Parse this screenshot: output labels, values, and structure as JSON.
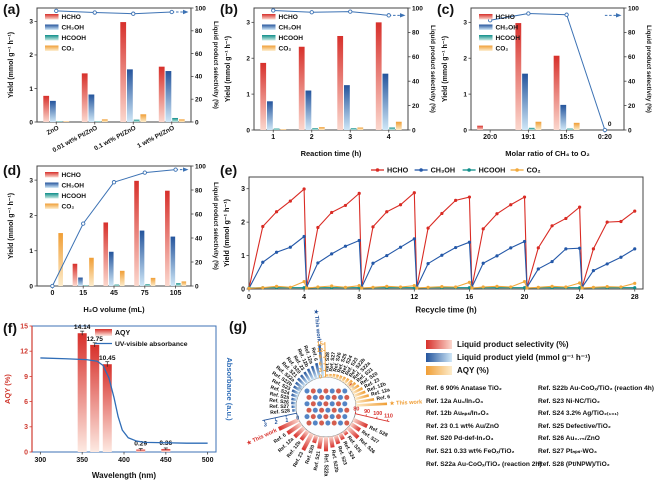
{
  "figure": {
    "panels": {
      "a": {
        "tag": "(a)"
      },
      "b": {
        "tag": "(b)"
      },
      "c": {
        "tag": "(c)"
      },
      "d": {
        "tag": "(d)"
      },
      "e": {
        "tag": "(e)"
      },
      "f": {
        "tag": "(f)"
      },
      "g": {
        "tag": "(g)"
      }
    }
  },
  "colors": {
    "red": "#e2453c",
    "red_dark": "#d7302b",
    "red_light": "#fbd7cd",
    "blue": "#2a65ae",
    "blue_dark": "#24549c",
    "blue_light": "#cfe7f7",
    "teal": "#0f8e8a",
    "teal_light": "#c9e9e2",
    "orange": "#f4ac4c",
    "orange_dark": "#f09e35",
    "orange_light": "#fdeccb",
    "line_blue": "#3c72b4",
    "axis": "#444444",
    "text": "#111111"
  },
  "chart_data": [
    {
      "id": "a",
      "type": "bar+line",
      "categories": [
        "ZnO",
        "0.01 wt% Pt/ZnO",
        "0.1 wt% Pt/ZnO",
        "1 wt% Pt/ZnO"
      ],
      "rotate_xlabels": true,
      "xlabel": "",
      "ylabel": "Yield (mmol g⁻¹ h⁻¹)",
      "y2label": "Liquid product selectivity (%)",
      "ylim": [
        0,
        3.4
      ],
      "yticks": [
        0,
        1,
        2,
        3
      ],
      "y2lim": [
        0,
        100
      ],
      "y2ticks": [
        0,
        20,
        40,
        60,
        80,
        100
      ],
      "series": [
        {
          "name": "HCHO",
          "color_key": "red",
          "values": [
            0.78,
            1.45,
            2.98,
            1.65
          ]
        },
        {
          "name": "CH₃OH",
          "color_key": "blue",
          "values": [
            0.63,
            0.82,
            1.57,
            1.52
          ]
        },
        {
          "name": "HCOOH",
          "color_key": "teal",
          "values": [
            0.02,
            0.02,
            0.07,
            0.12
          ]
        },
        {
          "name": "CO₂",
          "color_key": "orange",
          "values": [
            0.02,
            0.08,
            0.23,
            0.08
          ]
        }
      ],
      "line": {
        "name": "Liquid product selectivity",
        "values": [
          97.5,
          96,
          95,
          96.5
        ],
        "arrow_y": 96.5
      }
    },
    {
      "id": "b",
      "type": "bar+line",
      "categories": [
        "1",
        "2",
        "3",
        "4"
      ],
      "rotate_xlabels": false,
      "xlabel": "Reaction time (h)",
      "ylabel": "Yield (mmol g⁻¹ h⁻¹)",
      "y2label": "Liquid product selectivity (%)",
      "ylim": [
        0,
        3.4
      ],
      "yticks": [
        0,
        1,
        2,
        3
      ],
      "y2lim": [
        0,
        100
      ],
      "y2ticks": [
        0,
        20,
        40,
        60,
        80,
        100
      ],
      "series": [
        {
          "name": "HCHO",
          "color_key": "red",
          "values": [
            1.87,
            2.32,
            2.62,
            3.0
          ]
        },
        {
          "name": "CH₃OH",
          "color_key": "blue",
          "values": [
            0.8,
            1.1,
            1.25,
            1.57
          ]
        },
        {
          "name": "HCOOH",
          "color_key": "teal",
          "values": [
            0.04,
            0.05,
            0.05,
            0.07
          ]
        },
        {
          "name": "CO₂",
          "color_key": "orange",
          "values": [
            0.02,
            0.08,
            0.07,
            0.23
          ]
        }
      ],
      "line": {
        "name": "Liquid product selectivity",
        "values": [
          98,
          96.5,
          97,
          94
        ],
        "arrow_y": 94
      }
    },
    {
      "id": "c",
      "type": "bar+line",
      "categories": [
        "20:0",
        "19:1",
        "15:5",
        "0:20"
      ],
      "rotate_xlabels": false,
      "xlabel": "Molar ratio of CH₄ to O₂",
      "ylabel": "Yield (mmol g⁻¹ h⁻¹)",
      "y2label": "Liquid product selectivity (%)",
      "ylim": [
        0,
        3.4
      ],
      "yticks": [
        0,
        1,
        2,
        3
      ],
      "y2lim": [
        0,
        100
      ],
      "y2ticks": [
        0,
        20,
        40,
        60,
        80,
        100
      ],
      "series": [
        {
          "name": "HCHO",
          "color_key": "red",
          "values": [
            0.12,
            2.98,
            2.07,
            0
          ]
        },
        {
          "name": "CH₃OH",
          "color_key": "blue",
          "values": [
            0,
            1.57,
            0.7,
            0
          ]
        },
        {
          "name": "HCOOH",
          "color_key": "teal",
          "values": [
            0,
            0.06,
            0.04,
            0
          ]
        },
        {
          "name": "CO₂",
          "color_key": "orange",
          "values": [
            0,
            0.23,
            0.2,
            0
          ]
        }
      ],
      "line": {
        "name": "Liquid product selectivity",
        "values": [
          90,
          95.5,
          94.5,
          0
        ],
        "zero_label": "0",
        "zero_label_index": 3,
        "arrow_y": 94
      }
    },
    {
      "id": "d",
      "type": "bar+line",
      "categories": [
        "0",
        "15",
        "45",
        "75",
        "105"
      ],
      "rotate_xlabels": false,
      "xlabel": "H₂O volume (mL)",
      "ylabel": "Yield (mmol g⁻¹ h⁻¹)",
      "y2label": "Liquid product selectivity (%)",
      "ylim": [
        0,
        3.4
      ],
      "yticks": [
        0,
        1,
        2,
        3
      ],
      "y2lim": [
        0,
        100
      ],
      "y2ticks": [
        0,
        20,
        40,
        60,
        80,
        100
      ],
      "series": [
        {
          "name": "HCHO",
          "color_key": "red",
          "values": [
            0,
            0.63,
            1.8,
            2.98,
            2.7
          ]
        },
        {
          "name": "CH₃OH",
          "color_key": "blue",
          "values": [
            0,
            0.24,
            0.97,
            1.57,
            1.4
          ]
        },
        {
          "name": "HCOOH",
          "color_key": "teal",
          "values": [
            0,
            0.02,
            0.04,
            0.05,
            0.08
          ]
        },
        {
          "name": "CO₂",
          "color_key": "orange",
          "values": [
            1.5,
            0.8,
            0.43,
            0.23,
            0.13
          ]
        }
      ],
      "line": {
        "name": "Liquid product selectivity",
        "values": [
          0,
          52,
          86.5,
          94.5,
          97
        ],
        "arrow_y": 97
      }
    },
    {
      "id": "e",
      "type": "line",
      "xlabel": "Recycle time (h)",
      "ylabel": "Yield (mmol g⁻¹ h⁻¹)",
      "xlim": [
        0,
        28.6
      ],
      "xticks": [
        0,
        4,
        8,
        12,
        16,
        20,
        24,
        28
      ],
      "ylim": [
        0,
        3.35
      ],
      "yticks": [
        0,
        1,
        2,
        3
      ],
      "cycle_hours": 4,
      "series": [
        {
          "name": "HCHO",
          "color": "#d92b24",
          "cycles": [
            [
              0.02,
              1.87,
              2.31,
              2.63,
              2.99
            ],
            [
              0.05,
              1.84,
              2.29,
              2.5,
              2.86
            ],
            [
              0.05,
              1.86,
              2.31,
              2.52,
              2.88
            ],
            [
              0.05,
              1.82,
              2.26,
              2.65,
              2.75
            ],
            [
              0.05,
              1.8,
              2.25,
              2.52,
              2.75
            ],
            [
              0.05,
              1.23,
              1.89,
              2.11,
              2.45
            ],
            [
              0.05,
              1.2,
              2.0,
              2.02,
              2.33
            ]
          ]
        },
        {
          "name": "CH₃OH",
          "color": "#2458a8",
          "cycles": [
            [
              0.02,
              0.8,
              1.1,
              1.25,
              1.57
            ],
            [
              0.05,
              0.78,
              1.05,
              1.28,
              1.45
            ],
            [
              0.05,
              0.77,
              1.0,
              1.25,
              1.5
            ],
            [
              0.05,
              0.76,
              1.01,
              1.24,
              1.4
            ],
            [
              0.05,
              0.77,
              0.99,
              1.23,
              1.42
            ],
            [
              0.05,
              0.6,
              0.82,
              1.2,
              1.22
            ],
            [
              0.05,
              0.55,
              0.75,
              0.95,
              1.2
            ]
          ]
        },
        {
          "name": "HCOOH",
          "color": "#0f8e8a",
          "cycles": [
            [
              0.03,
              0.04,
              0.04,
              0.04,
              0.04
            ],
            [
              0.03,
              0.04,
              0.04,
              0.04,
              0.04
            ],
            [
              0.03,
              0.04,
              0.04,
              0.04,
              0.04
            ],
            [
              0.03,
              0.04,
              0.04,
              0.04,
              0.04
            ],
            [
              0.03,
              0.04,
              0.04,
              0.04,
              0.04
            ],
            [
              0.03,
              0.04,
              0.04,
              0.04,
              0.04
            ],
            [
              0.03,
              0.04,
              0.04,
              0.04,
              0.04
            ]
          ]
        },
        {
          "name": "CO₂",
          "color": "#f2a93b",
          "cycles": [
            [
              0.02,
              0.04,
              0.08,
              0.05,
              0.22
            ],
            [
              0.03,
              0.06,
              0.09,
              0.05,
              0.1
            ],
            [
              0.03,
              0.05,
              0.08,
              0.06,
              0.1
            ],
            [
              0.03,
              0.05,
              0.07,
              0.06,
              0.2
            ],
            [
              0.03,
              0.06,
              0.08,
              0.06,
              0.22
            ],
            [
              0.03,
              0.05,
              0.08,
              0.06,
              0.18
            ],
            [
              0.03,
              0.05,
              0.07,
              0.06,
              0.17
            ]
          ]
        }
      ]
    },
    {
      "id": "f",
      "type": "bar+curve",
      "xlabel": "Wavelength (nm)",
      "ylabel": "AQY (%)",
      "y2label": "Absorbance (a.u.)",
      "xlim": [
        290,
        510
      ],
      "xticks": [
        300,
        350,
        400,
        450,
        500
      ],
      "ylim": [
        0,
        15
      ],
      "yticks": [
        0,
        3,
        6,
        9,
        12,
        15
      ],
      "bars": {
        "x": [
          350,
          365,
          380,
          420,
          450
        ],
        "values": [
          14.14,
          12.75,
          10.45,
          0.29,
          0.36
        ],
        "labels": [
          "14.14",
          "12.75",
          "10.45",
          "0.29",
          "0.36"
        ],
        "errors": [
          0.25,
          0.25,
          0.3,
          0.12,
          0.12
        ]
      },
      "curve": {
        "name": "UV-visible absorbance",
        "points": [
          [
            300,
            11.2
          ],
          [
            330,
            11.1
          ],
          [
            355,
            11.0
          ],
          [
            368,
            10.8
          ],
          [
            375,
            10.3
          ],
          [
            382,
            8.8
          ],
          [
            388,
            6.5
          ],
          [
            393,
            4.2
          ],
          [
            398,
            2.6
          ],
          [
            405,
            1.7
          ],
          [
            415,
            1.3
          ],
          [
            425,
            1.15
          ],
          [
            450,
            1.1
          ],
          [
            475,
            1.05
          ],
          [
            500,
            1.05
          ]
        ]
      },
      "legend": {
        "bar_label": "AQY",
        "curve_label": "UV-visible absorbance"
      }
    },
    {
      "id": "g",
      "type": "polar-bar",
      "labels": [
        "This work",
        "Ref. 6",
        "Ref. 12a",
        "Ref. 12b",
        "Ref. 23",
        "Ref. S20",
        "Ref. S21",
        "Ref. S22a",
        "Ref. S22b",
        "Ref. S23",
        "Ref. S24",
        "Ref. S25",
        "Ref. S26",
        "Ref. S27",
        "Ref. S28"
      ],
      "this_work_star": "★",
      "groups": [
        {
          "name": "Liquid product selectivity (%)",
          "color_key": "red",
          "range": [
            80,
            110
          ],
          "ticks": [
            80,
            90,
            100,
            110
          ],
          "axis_angle": 347,
          "start_angle": 205,
          "end_angle": 335,
          "values": [
            100,
            95,
            92,
            90,
            97,
            87,
            91,
            93,
            90,
            88,
            86,
            84,
            93,
            90,
            94
          ]
        },
        {
          "name": "Liquid product yield (mmol g⁻¹ h⁻¹)",
          "color_key": "blue",
          "range": [
            0,
            3
          ],
          "ticks": [
            0,
            1,
            2,
            3
          ],
          "axis_angle": 192,
          "start_angle": 96,
          "end_angle": 186,
          "values": [
            3.0,
            1.35,
            1.2,
            1.1,
            1.0,
            0.95,
            0.9,
            0.8,
            0.75,
            0.7,
            0.6,
            0.5,
            0.45,
            0.4,
            0.35
          ]
        },
        {
          "name": "AQY (%)",
          "color_key": "orange",
          "range": [
            0,
            15
          ],
          "ticks": [
            0,
            3,
            6,
            9,
            12,
            15
          ],
          "axis_angle": 91,
          "start_angle": 3,
          "end_angle": 88,
          "values": [
            14.14,
            8.5,
            6.5,
            5.5,
            5.0,
            4.2,
            3.6,
            3.2,
            2.8,
            2.5,
            2.2,
            2.0,
            1.8,
            1.5,
            1.2
          ]
        }
      ]
    }
  ],
  "g_legend": [
    {
      "label": "Liquid product selectivity (%)",
      "color_key": "red"
    },
    {
      "label": "Liquid product yield (mmol g⁻¹ h⁻¹)",
      "color_key": "blue"
    },
    {
      "label": "AQY (%)",
      "color_key": "orange"
    }
  ],
  "g_refs": {
    "left": [
      "Ref. 6 90% Anatase TiO₂",
      "Ref. 12a Au₁/In₂O₃",
      "Ref. 12b Auₙₚₛ/In₂O₃",
      "Ref. 23 0.1 wt% Au/ZnO",
      "Ref. S20 Pd-def-In₂O₃",
      "Ref. S21 0.33 wt% FeOₓ/TiO₂",
      "Ref. S22a Au-CoOₓ/TiO₂ (reaction 2h)"
    ],
    "right": [
      "Ref. S22b Au-CoOₓ/TiO₂ (reaction 4h)",
      "Ref. S23 Ni-NC/TiO₂",
      "Ref. S24 3.2% Ag/TiO₂₍₁₀₁₎",
      "Ref. S25 Defective/TiO₂",
      "Ref. S26 Au₀.₇₅/ZnO",
      "Ref. S27 Ptₙₚₛ-WO₃",
      "Ref. S28 (Pt/NPW)/TiO₂"
    ]
  }
}
